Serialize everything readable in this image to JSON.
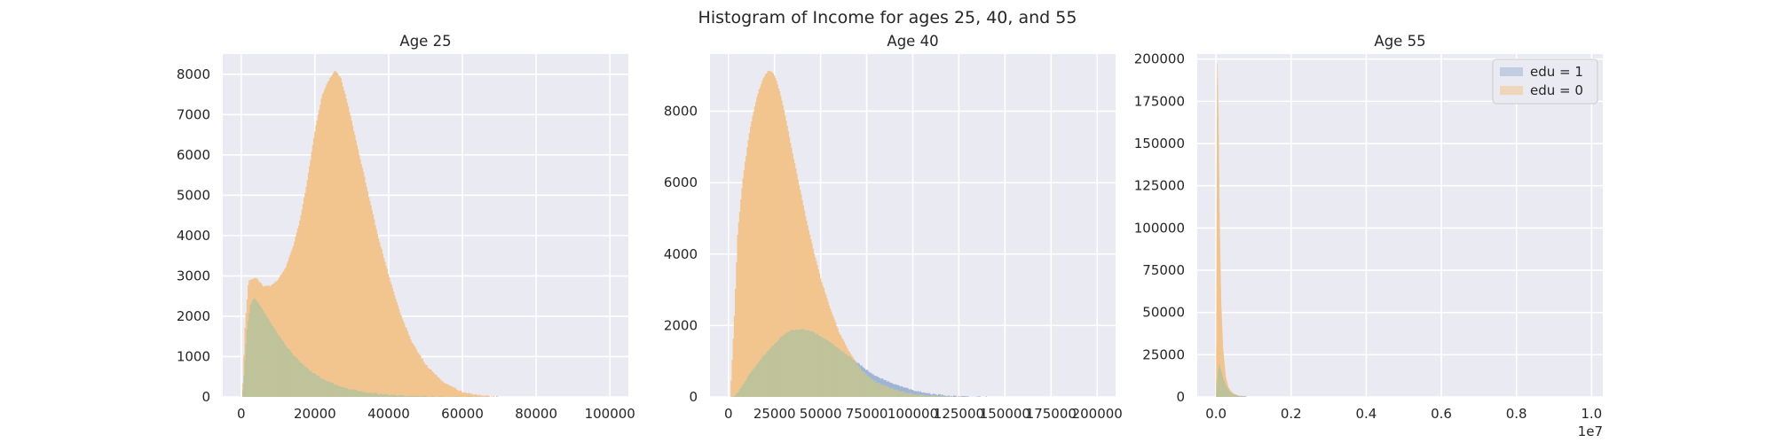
{
  "suptitle": "Histogram of Income for ages 25, 40, and 55",
  "colors": {
    "background": "#eaeaf2",
    "grid": "#ffffff",
    "edu1": "#9fb4d4",
    "edu0": "#f2c48e",
    "overlap": "#bfc39a"
  },
  "chart_data": [
    {
      "type": "bar",
      "title": "Age 25",
      "xlim": [
        -5000,
        105000
      ],
      "ylim": [
        0,
        8500
      ],
      "xticks": [
        0,
        20000,
        40000,
        60000,
        80000,
        100000
      ],
      "xtick_labels": [
        "0",
        "20000",
        "40000",
        "60000",
        "80000",
        "100000"
      ],
      "yticks": [
        0,
        1000,
        2000,
        3000,
        4000,
        5000,
        6000,
        7000,
        8000
      ],
      "ytick_labels": [
        "0",
        "1000",
        "2000",
        "3000",
        "4000",
        "5000",
        "6000",
        "7000",
        "8000"
      ],
      "series": [
        {
          "name": "edu = 1",
          "points": [
            [
              300,
              0
            ],
            [
              800,
              600
            ],
            [
              1500,
              1600
            ],
            [
              2500,
              2300
            ],
            [
              3500,
              2450
            ],
            [
              5000,
              2300
            ],
            [
              7000,
              2000
            ],
            [
              10000,
              1550
            ],
            [
              14000,
              1050
            ],
            [
              18000,
              700
            ],
            [
              22000,
              450
            ],
            [
              27000,
              260
            ],
            [
              32000,
              140
            ],
            [
              38000,
              70
            ],
            [
              45000,
              30
            ],
            [
              55000,
              5
            ],
            [
              65000,
              0
            ]
          ]
        },
        {
          "name": "edu = 0",
          "points": [
            [
              300,
              0
            ],
            [
              1000,
              1700
            ],
            [
              2000,
              2900
            ],
            [
              4000,
              2950
            ],
            [
              6000,
              2750
            ],
            [
              8000,
              2750
            ],
            [
              10000,
              2900
            ],
            [
              12000,
              3200
            ],
            [
              14000,
              3700
            ],
            [
              16000,
              4400
            ],
            [
              18000,
              5400
            ],
            [
              20000,
              6600
            ],
            [
              22000,
              7500
            ],
            [
              24000,
              7900
            ],
            [
              25500,
              8100
            ],
            [
              27000,
              7900
            ],
            [
              29000,
              7200
            ],
            [
              31000,
              6400
            ],
            [
              33000,
              5600
            ],
            [
              35000,
              4800
            ],
            [
              37000,
              4000
            ],
            [
              40000,
              3000
            ],
            [
              43000,
              2100
            ],
            [
              46000,
              1400
            ],
            [
              50000,
              800
            ],
            [
              55000,
              350
            ],
            [
              60000,
              120
            ],
            [
              65000,
              30
            ],
            [
              70000,
              0
            ]
          ]
        }
      ],
      "legend": null
    },
    {
      "type": "bar",
      "title": "Age 40",
      "xlim": [
        -10000,
        210000
      ],
      "ylim": [
        0,
        9600
      ],
      "xticks": [
        0,
        25000,
        50000,
        75000,
        100000,
        125000,
        150000,
        175000,
        200000
      ],
      "xtick_labels": [
        "0",
        "25000",
        "50000",
        "75000",
        "100000",
        "125000",
        "150000",
        "175000",
        "200000"
      ],
      "yticks": [
        0,
        2000,
        4000,
        6000,
        8000
      ],
      "ytick_labels": [
        "0",
        "2000",
        "4000",
        "6000",
        "8000"
      ],
      "series": [
        {
          "name": "edu = 1",
          "points": [
            [
              3000,
              0
            ],
            [
              8000,
              350
            ],
            [
              12000,
              700
            ],
            [
              18000,
              1100
            ],
            [
              25000,
              1500
            ],
            [
              30000,
              1750
            ],
            [
              35000,
              1880
            ],
            [
              40000,
              1900
            ],
            [
              45000,
              1850
            ],
            [
              50000,
              1700
            ],
            [
              55000,
              1550
            ],
            [
              60000,
              1350
            ],
            [
              65000,
              1150
            ],
            [
              70000,
              950
            ],
            [
              75000,
              750
            ],
            [
              80000,
              580
            ],
            [
              90000,
              350
            ],
            [
              100000,
              180
            ],
            [
              110000,
              80
            ],
            [
              120000,
              30
            ],
            [
              130000,
              5
            ],
            [
              140000,
              0
            ]
          ]
        },
        {
          "name": "edu = 0",
          "points": [
            [
              1000,
              0
            ],
            [
              3000,
              2000
            ],
            [
              5000,
              4600
            ],
            [
              8000,
              6200
            ],
            [
              12000,
              7600
            ],
            [
              16000,
              8500
            ],
            [
              19000,
              8950
            ],
            [
              22000,
              9150
            ],
            [
              25000,
              9000
            ],
            [
              28000,
              8500
            ],
            [
              31000,
              7800
            ],
            [
              34000,
              7000
            ],
            [
              38000,
              6000
            ],
            [
              42000,
              5000
            ],
            [
              46000,
              4100
            ],
            [
              50000,
              3300
            ],
            [
              55000,
              2500
            ],
            [
              60000,
              1800
            ],
            [
              65000,
              1300
            ],
            [
              70000,
              900
            ],
            [
              75000,
              600
            ],
            [
              80000,
              420
            ],
            [
              90000,
              200
            ],
            [
              100000,
              80
            ],
            [
              110000,
              30
            ],
            [
              120000,
              5
            ],
            [
              125000,
              0
            ]
          ]
        }
      ],
      "legend": null
    },
    {
      "type": "bar",
      "title": "Age 55",
      "xlim": [
        -500000,
        10300000
      ],
      "ylim": [
        0,
        203000
      ],
      "xticks": [
        0,
        2000000,
        4000000,
        6000000,
        8000000,
        10000000
      ],
      "xtick_labels": [
        "0.0",
        "0.2",
        "0.4",
        "0.6",
        "0.8",
        "1.0"
      ],
      "offset_text": "1e7",
      "yticks": [
        0,
        25000,
        50000,
        75000,
        100000,
        125000,
        150000,
        175000,
        200000
      ],
      "ytick_labels": [
        "0",
        "25000",
        "50000",
        "75000",
        "100000",
        "125000",
        "150000",
        "175000",
        "200000"
      ],
      "series": [
        {
          "name": "edu = 1",
          "points": [
            [
              0,
              0
            ],
            [
              20000,
              5000
            ],
            [
              50000,
              15000
            ],
            [
              80000,
              20000
            ],
            [
              120000,
              17000
            ],
            [
              180000,
              12000
            ],
            [
              260000,
              7000
            ],
            [
              350000,
              3500
            ],
            [
              450000,
              1500
            ],
            [
              600000,
              400
            ],
            [
              800000,
              0
            ]
          ]
        },
        {
          "name": "edu = 0",
          "points": [
            [
              0,
              0
            ],
            [
              10000,
              60000
            ],
            [
              30000,
              200000
            ],
            [
              60000,
              160000
            ],
            [
              90000,
              100000
            ],
            [
              130000,
              55000
            ],
            [
              180000,
              28000
            ],
            [
              250000,
              12000
            ],
            [
              330000,
              5000
            ],
            [
              450000,
              1800
            ],
            [
              600000,
              400
            ],
            [
              800000,
              0
            ]
          ]
        }
      ],
      "legend": {
        "position": "top-right",
        "entries": [
          "edu = 1",
          "edu = 0"
        ]
      }
    }
  ]
}
